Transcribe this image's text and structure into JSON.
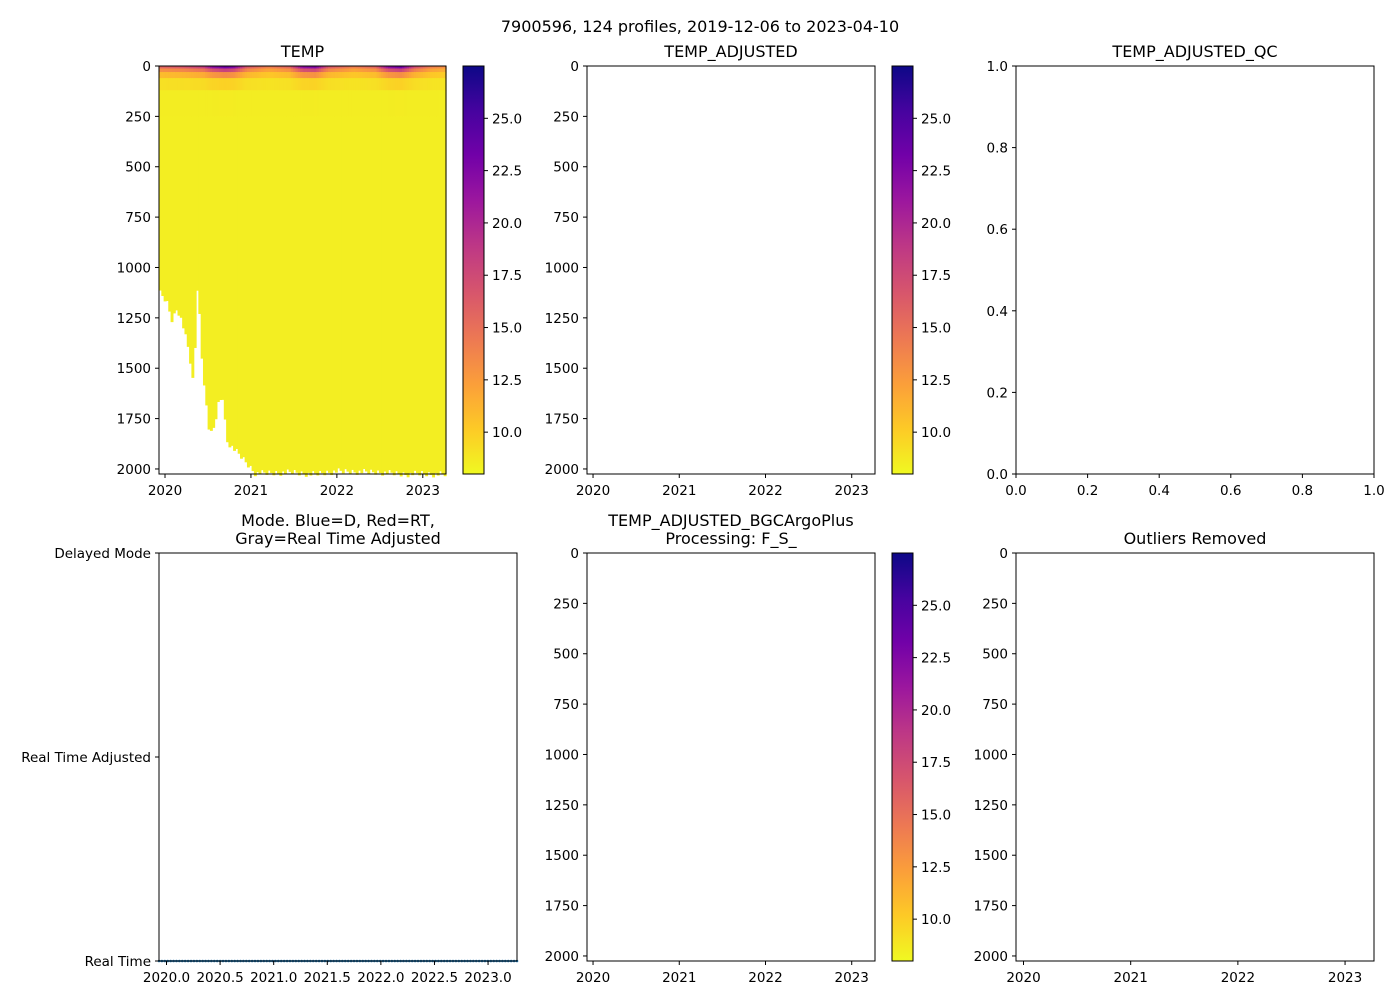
{
  "suptitle": "7900596, 124 profiles, 2019-12-06 to 2023-04-10",
  "colors": {
    "cmap": [
      "#f0f921",
      "#fdca26",
      "#fb9f3a",
      "#ed7953",
      "#d8576b",
      "#bd3786",
      "#9c179e",
      "#7201a8",
      "#46039f",
      "#0d0887"
    ],
    "mode_line": "#1f77b4",
    "axis": "#000000"
  },
  "chart_data": [
    {
      "id": "temp",
      "type": "heatmap",
      "title": "TEMP",
      "x_ticks": [
        "2020",
        "2021",
        "2022",
        "2023"
      ],
      "x_tick_values": [
        2020,
        2021,
        2022,
        2023
      ],
      "xlim": [
        2019.93,
        2023.27
      ],
      "y_ticks": [
        "0",
        "250",
        "500",
        "750",
        "1000",
        "1250",
        "1500",
        "1750",
        "2000"
      ],
      "y_tick_values": [
        0,
        250,
        500,
        750,
        1000,
        1250,
        1500,
        1750,
        2000
      ],
      "ylim": [
        2025,
        0
      ],
      "colorbar": {
        "ticks": [
          "10.0",
          "12.5",
          "15.0",
          "17.5",
          "20.0",
          "22.5",
          "25.0"
        ],
        "tick_values": [
          10,
          12.5,
          15,
          17.5,
          20,
          22.5,
          25
        ],
        "range": [
          8,
          27.5
        ]
      },
      "profile_max_depth": [
        [
          2019.93,
          1120
        ],
        [
          2020.02,
          1170
        ],
        [
          2020.08,
          1260
        ],
        [
          2020.14,
          1200
        ],
        [
          2020.2,
          1270
        ],
        [
          2020.28,
          1420
        ],
        [
          2020.33,
          1590
        ],
        [
          2020.38,
          1040
        ],
        [
          2020.42,
          1410
        ],
        [
          2020.48,
          1680
        ],
        [
          2020.52,
          1840
        ],
        [
          2020.57,
          1790
        ],
        [
          2020.62,
          1670
        ],
        [
          2020.67,
          1640
        ],
        [
          2020.72,
          1860
        ],
        [
          2020.8,
          1900
        ],
        [
          2020.87,
          1930
        ],
        [
          2020.95,
          1970
        ],
        [
          2021.05,
          2020
        ],
        [
          2021.5,
          2015
        ],
        [
          2021.7,
          2025
        ],
        [
          2022.0,
          2010
        ],
        [
          2022.5,
          2015
        ],
        [
          2022.8,
          2025
        ],
        [
          2023.0,
          2020
        ],
        [
          2023.1,
          2025
        ],
        [
          2023.27,
          2025
        ]
      ],
      "surface_temperature": [
        [
          2019.93,
          17
        ],
        [
          2020.2,
          18
        ],
        [
          2020.45,
          20
        ],
        [
          2020.55,
          24
        ],
        [
          2020.7,
          26
        ],
        [
          2020.8,
          25
        ],
        [
          2020.95,
          18
        ],
        [
          2021.2,
          15
        ],
        [
          2021.45,
          17
        ],
        [
          2021.6,
          24
        ],
        [
          2021.75,
          25
        ],
        [
          2021.9,
          18
        ],
        [
          2022.2,
          15
        ],
        [
          2022.45,
          17
        ],
        [
          2022.6,
          24
        ],
        [
          2022.75,
          26
        ],
        [
          2022.9,
          19
        ],
        [
          2023.1,
          15
        ],
        [
          2023.27,
          14
        ]
      ],
      "deep_temperature": 8.5
    },
    {
      "id": "temp-adjusted",
      "type": "heatmap",
      "title": "TEMP_ADJUSTED",
      "x_ticks": [
        "2020",
        "2021",
        "2022",
        "2023"
      ],
      "x_tick_values": [
        2020,
        2021,
        2022,
        2023
      ],
      "xlim": [
        2019.93,
        2023.27
      ],
      "y_ticks": [
        "0",
        "250",
        "500",
        "750",
        "1000",
        "1250",
        "1500",
        "1750",
        "2000"
      ],
      "y_tick_values": [
        0,
        250,
        500,
        750,
        1000,
        1250,
        1500,
        1750,
        2000
      ],
      "ylim": [
        2025,
        0
      ],
      "colorbar": {
        "ticks": [
          "10.0",
          "12.5",
          "15.0",
          "17.5",
          "20.0",
          "22.5",
          "25.0"
        ],
        "tick_values": [
          10,
          12.5,
          15,
          17.5,
          20,
          22.5,
          25
        ],
        "range": [
          8,
          27.5
        ]
      }
    },
    {
      "id": "temp-adjusted-qc",
      "type": "scatter",
      "title": "TEMP_ADJUSTED_QC",
      "x_ticks": [
        "0.0",
        "0.2",
        "0.4",
        "0.6",
        "0.8",
        "1.0"
      ],
      "x_tick_values": [
        0,
        0.2,
        0.4,
        0.6,
        0.8,
        1.0
      ],
      "xlim": [
        0,
        1
      ],
      "y_ticks": [
        "0.0",
        "0.2",
        "0.4",
        "0.6",
        "0.8",
        "1.0"
      ],
      "y_tick_values": [
        0,
        0.2,
        0.4,
        0.6,
        0.8,
        1.0
      ],
      "ylim": [
        0,
        1
      ]
    },
    {
      "id": "mode",
      "type": "line",
      "title": "Mode. Blue=D, Red=RT,",
      "title_line2": "Gray=Real Time Adjusted",
      "x_ticks": [
        "2020.0",
        "2020.5",
        "2021.0",
        "2021.5",
        "2022.0",
        "2022.5",
        "2023.0"
      ],
      "x_tick_values": [
        2020.0,
        2020.5,
        2021.0,
        2021.5,
        2022.0,
        2022.5,
        2023.0
      ],
      "xlim": [
        2019.93,
        2023.27
      ],
      "y_ticks": [
        "Real Time",
        "Real Time Adjusted",
        "Delayed Mode"
      ],
      "y_tick_values": [
        0,
        1,
        2
      ],
      "ylim": [
        0,
        2
      ],
      "series": [
        {
          "name": "Real Time",
          "value": 0,
          "x_start": 2019.93,
          "x_end": 2023.27,
          "profiles": 124
        }
      ]
    },
    {
      "id": "temp-adjusted-bgc",
      "type": "heatmap",
      "title": "TEMP_ADJUSTED_BGCArgoPlus",
      "title_line2": "Processing: F_S_",
      "x_ticks": [
        "2020",
        "2021",
        "2022",
        "2023"
      ],
      "x_tick_values": [
        2020,
        2021,
        2022,
        2023
      ],
      "xlim": [
        2019.93,
        2023.27
      ],
      "y_ticks": [
        "0",
        "250",
        "500",
        "750",
        "1000",
        "1250",
        "1500",
        "1750",
        "2000"
      ],
      "y_tick_values": [
        0,
        250,
        500,
        750,
        1000,
        1250,
        1500,
        1750,
        2000
      ],
      "ylim": [
        2025,
        0
      ],
      "colorbar": {
        "ticks": [
          "10.0",
          "12.5",
          "15.0",
          "17.5",
          "20.0",
          "22.5",
          "25.0"
        ],
        "tick_values": [
          10,
          12.5,
          15,
          17.5,
          20,
          22.5,
          25
        ],
        "range": [
          8,
          27.5
        ]
      }
    },
    {
      "id": "outliers",
      "type": "scatter",
      "title": "Outliers Removed",
      "x_ticks": [
        "2020",
        "2021",
        "2022",
        "2023"
      ],
      "x_tick_values": [
        2020,
        2021,
        2022,
        2023
      ],
      "xlim": [
        2019.93,
        2023.27
      ],
      "y_ticks": [
        "0",
        "250",
        "500",
        "750",
        "1000",
        "1250",
        "1500",
        "1750",
        "2000"
      ],
      "y_tick_values": [
        0,
        250,
        500,
        750,
        1000,
        1250,
        1500,
        1750,
        2000
      ],
      "ylim": [
        2025,
        0
      ]
    }
  ]
}
